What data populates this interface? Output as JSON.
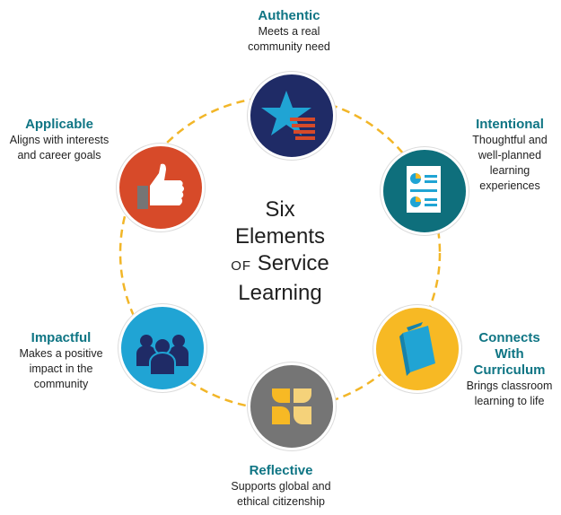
{
  "title": {
    "line1": "Six",
    "line2": "Elements",
    "line3_prefix": "OF",
    "line3_main": "Service",
    "line4": "Learning"
  },
  "colors": {
    "teal_text": "#0f7584",
    "ring": "#f2b628",
    "navy": "#1f2b66",
    "teal": "#0e6f7c",
    "yellow": "#f7b924",
    "gray": "#757575",
    "sky": "#20a4d4",
    "orange": "#d74a29"
  },
  "elements": [
    {
      "title": "Authentic",
      "desc": [
        "Meets a real",
        "community need"
      ],
      "icon": "star-icon"
    },
    {
      "title": "Intentional",
      "desc": [
        "Thoughtful and",
        "well-planned",
        "learning",
        "experiences"
      ],
      "icon": "document-icon"
    },
    {
      "title": "Connects",
      "title2": "With",
      "title3": "Curriculum",
      "desc": [
        "Brings classroom",
        "learning to life"
      ],
      "icon": "book-icon"
    },
    {
      "title": "Reflective",
      "desc": [
        "Supports global and",
        "ethical citizenship"
      ],
      "icon": "reflection-icon"
    },
    {
      "title": "Impactful",
      "desc": [
        "Makes a positive",
        "impact in the",
        "community"
      ],
      "icon": "people-icon"
    },
    {
      "title": "Applicable",
      "desc": [
        "Aligns with interests",
        "and career goals"
      ],
      "icon": "thumbs-up-icon"
    }
  ]
}
